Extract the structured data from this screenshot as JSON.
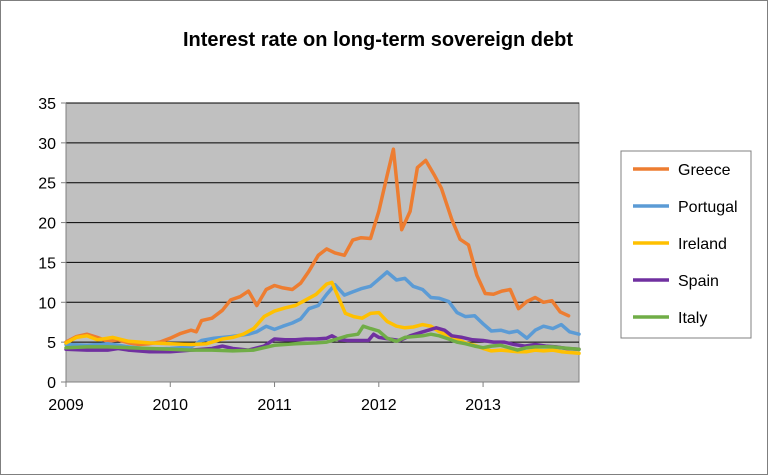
{
  "chart_data": {
    "type": "line",
    "title": "Interest rate on long-term sovereign debt",
    "xlabel": "",
    "ylabel": "",
    "xlim": [
      2009,
      2013.92
    ],
    "ylim": [
      0,
      35
    ],
    "yticks": [
      0,
      5,
      10,
      15,
      20,
      25,
      30,
      35
    ],
    "xticks": [
      2009,
      2010,
      2011,
      2012,
      2013
    ],
    "ytick_labels": [
      "0",
      "5",
      "10",
      "15",
      "20",
      "25",
      "30",
      "35"
    ],
    "xtick_labels": [
      "2009",
      "2010",
      "2011",
      "2012",
      "2013"
    ],
    "grid": "horizontal",
    "legend_position": "right",
    "plot_background": "#c0c0c0",
    "series": [
      {
        "name": "Greece",
        "color": "#ed7d31",
        "points": [
          [
            2009.0,
            5.0
          ],
          [
            2009.1,
            5.7
          ],
          [
            2009.2,
            6.0
          ],
          [
            2009.3,
            5.6
          ],
          [
            2009.4,
            5.1
          ],
          [
            2009.5,
            5.3
          ],
          [
            2009.6,
            4.9
          ],
          [
            2009.7,
            4.7
          ],
          [
            2009.8,
            4.8
          ],
          [
            2009.9,
            5.0
          ],
          [
            2010.0,
            5.5
          ],
          [
            2010.1,
            6.1
          ],
          [
            2010.2,
            6.5
          ],
          [
            2010.25,
            6.3
          ],
          [
            2010.3,
            7.7
          ],
          [
            2010.4,
            8.0
          ],
          [
            2010.5,
            9.0
          ],
          [
            2010.58,
            10.3
          ],
          [
            2010.67,
            10.7
          ],
          [
            2010.75,
            11.4
          ],
          [
            2010.83,
            9.6
          ],
          [
            2010.92,
            11.6
          ],
          [
            2011.0,
            12.1
          ],
          [
            2011.08,
            11.8
          ],
          [
            2011.17,
            11.6
          ],
          [
            2011.25,
            12.4
          ],
          [
            2011.33,
            13.9
          ],
          [
            2011.42,
            15.9
          ],
          [
            2011.5,
            16.7
          ],
          [
            2011.58,
            16.2
          ],
          [
            2011.67,
            15.9
          ],
          [
            2011.75,
            17.8
          ],
          [
            2011.83,
            18.1
          ],
          [
            2011.92,
            18.0
          ],
          [
            2012.0,
            21.4
          ],
          [
            2012.08,
            25.9
          ],
          [
            2012.14,
            29.2
          ],
          [
            2012.22,
            19.1
          ],
          [
            2012.3,
            21.4
          ],
          [
            2012.37,
            26.9
          ],
          [
            2012.45,
            27.8
          ],
          [
            2012.53,
            26.0
          ],
          [
            2012.6,
            24.3
          ],
          [
            2012.7,
            20.4
          ],
          [
            2012.78,
            17.9
          ],
          [
            2012.86,
            17.2
          ],
          [
            2012.94,
            13.4
          ],
          [
            2013.02,
            11.1
          ],
          [
            2013.1,
            11.0
          ],
          [
            2013.18,
            11.4
          ],
          [
            2013.26,
            11.6
          ],
          [
            2013.34,
            9.2
          ],
          [
            2013.42,
            10.1
          ],
          [
            2013.5,
            10.6
          ],
          [
            2013.58,
            10.0
          ],
          [
            2013.66,
            10.2
          ],
          [
            2013.74,
            8.8
          ],
          [
            2013.82,
            8.3
          ]
        ]
      },
      {
        "name": "Portugal",
        "color": "#5b9bd5",
        "points": [
          [
            2009.0,
            4.7
          ],
          [
            2009.2,
            4.6
          ],
          [
            2009.4,
            4.8
          ],
          [
            2009.6,
            4.4
          ],
          [
            2009.8,
            4.1
          ],
          [
            2010.0,
            4.2
          ],
          [
            2010.2,
            4.4
          ],
          [
            2010.3,
            5.2
          ],
          [
            2010.42,
            5.5
          ],
          [
            2010.58,
            5.7
          ],
          [
            2010.75,
            6.0
          ],
          [
            2010.83,
            6.3
          ],
          [
            2010.92,
            7.0
          ],
          [
            2011.0,
            6.6
          ],
          [
            2011.08,
            7.0
          ],
          [
            2011.17,
            7.4
          ],
          [
            2011.25,
            7.9
          ],
          [
            2011.33,
            9.2
          ],
          [
            2011.42,
            9.6
          ],
          [
            2011.5,
            11.0
          ],
          [
            2011.58,
            12.2
          ],
          [
            2011.67,
            10.9
          ],
          [
            2011.75,
            11.3
          ],
          [
            2011.83,
            11.7
          ],
          [
            2011.92,
            12.0
          ],
          [
            2012.0,
            12.9
          ],
          [
            2012.08,
            13.8
          ],
          [
            2012.17,
            12.8
          ],
          [
            2012.25,
            13.0
          ],
          [
            2012.33,
            12.0
          ],
          [
            2012.42,
            11.6
          ],
          [
            2012.5,
            10.6
          ],
          [
            2012.58,
            10.5
          ],
          [
            2012.67,
            10.1
          ],
          [
            2012.75,
            8.7
          ],
          [
            2012.83,
            8.2
          ],
          [
            2012.92,
            8.3
          ],
          [
            2013.0,
            7.3
          ],
          [
            2013.08,
            6.4
          ],
          [
            2013.17,
            6.5
          ],
          [
            2013.25,
            6.2
          ],
          [
            2013.33,
            6.4
          ],
          [
            2013.42,
            5.5
          ],
          [
            2013.5,
            6.5
          ],
          [
            2013.58,
            7.0
          ],
          [
            2013.67,
            6.7
          ],
          [
            2013.75,
            7.2
          ],
          [
            2013.83,
            6.3
          ],
          [
            2013.92,
            6.0
          ]
        ]
      },
      {
        "name": "Ireland",
        "color": "#ffc000",
        "points": [
          [
            2009.0,
            4.9
          ],
          [
            2009.1,
            5.6
          ],
          [
            2009.2,
            5.8
          ],
          [
            2009.3,
            5.3
          ],
          [
            2009.45,
            5.6
          ],
          [
            2009.6,
            5.1
          ],
          [
            2009.8,
            4.9
          ],
          [
            2010.0,
            4.8
          ],
          [
            2010.2,
            4.7
          ],
          [
            2010.35,
            4.8
          ],
          [
            2010.5,
            5.4
          ],
          [
            2010.6,
            5.6
          ],
          [
            2010.7,
            6.0
          ],
          [
            2010.8,
            6.7
          ],
          [
            2010.9,
            8.2
          ],
          [
            2011.0,
            8.9
          ],
          [
            2011.1,
            9.3
          ],
          [
            2011.2,
            9.6
          ],
          [
            2011.3,
            10.3
          ],
          [
            2011.4,
            11.0
          ],
          [
            2011.5,
            12.3
          ],
          [
            2011.55,
            12.5
          ],
          [
            2011.6,
            11.0
          ],
          [
            2011.68,
            8.6
          ],
          [
            2011.76,
            8.2
          ],
          [
            2011.84,
            8.0
          ],
          [
            2011.92,
            8.6
          ],
          [
            2012.0,
            8.7
          ],
          [
            2012.08,
            7.6
          ],
          [
            2012.17,
            7.0
          ],
          [
            2012.25,
            6.8
          ],
          [
            2012.33,
            6.9
          ],
          [
            2012.42,
            7.2
          ],
          [
            2012.5,
            7.0
          ],
          [
            2012.58,
            6.3
          ],
          [
            2012.67,
            5.8
          ],
          [
            2012.75,
            5.4
          ],
          [
            2012.83,
            4.9
          ],
          [
            2012.92,
            4.6
          ],
          [
            2013.0,
            4.2
          ],
          [
            2013.08,
            3.9
          ],
          [
            2013.17,
            4.0
          ],
          [
            2013.25,
            3.9
          ],
          [
            2013.33,
            3.8
          ],
          [
            2013.42,
            3.8
          ],
          [
            2013.5,
            4.0
          ],
          [
            2013.58,
            3.9
          ],
          [
            2013.67,
            4.0
          ],
          [
            2013.75,
            3.8
          ],
          [
            2013.83,
            3.7
          ],
          [
            2013.92,
            3.6
          ]
        ]
      },
      {
        "name": "Spain",
        "color": "#7030a0",
        "points": [
          [
            2009.0,
            4.1
          ],
          [
            2009.2,
            4.0
          ],
          [
            2009.4,
            4.0
          ],
          [
            2009.5,
            4.2
          ],
          [
            2009.6,
            4.0
          ],
          [
            2009.8,
            3.8
          ],
          [
            2010.0,
            3.8
          ],
          [
            2010.2,
            4.0
          ],
          [
            2010.4,
            4.2
          ],
          [
            2010.5,
            4.5
          ],
          [
            2010.6,
            4.2
          ],
          [
            2010.75,
            4.0
          ],
          [
            2010.9,
            4.5
          ],
          [
            2011.0,
            5.4
          ],
          [
            2011.1,
            5.3
          ],
          [
            2011.2,
            5.3
          ],
          [
            2011.3,
            5.4
          ],
          [
            2011.4,
            5.4
          ],
          [
            2011.5,
            5.5
          ],
          [
            2011.55,
            5.8
          ],
          [
            2011.62,
            5.3
          ],
          [
            2011.7,
            5.2
          ],
          [
            2011.8,
            5.2
          ],
          [
            2011.9,
            5.2
          ],
          [
            2011.95,
            6.0
          ],
          [
            2012.0,
            5.6
          ],
          [
            2012.1,
            5.4
          ],
          [
            2012.2,
            5.2
          ],
          [
            2012.3,
            5.8
          ],
          [
            2012.4,
            6.2
          ],
          [
            2012.5,
            6.6
          ],
          [
            2012.55,
            6.8
          ],
          [
            2012.63,
            6.5
          ],
          [
            2012.7,
            5.8
          ],
          [
            2012.8,
            5.6
          ],
          [
            2012.9,
            5.3
          ],
          [
            2013.0,
            5.2
          ],
          [
            2013.1,
            5.0
          ],
          [
            2013.2,
            5.0
          ],
          [
            2013.3,
            4.7
          ],
          [
            2013.4,
            4.5
          ],
          [
            2013.5,
            4.7
          ],
          [
            2013.6,
            4.5
          ],
          [
            2013.7,
            4.4
          ],
          [
            2013.8,
            4.2
          ],
          [
            2013.92,
            4.1
          ]
        ]
      },
      {
        "name": "Italy",
        "color": "#70ad47",
        "points": [
          [
            2009.0,
            4.3
          ],
          [
            2009.2,
            4.4
          ],
          [
            2009.4,
            4.4
          ],
          [
            2009.6,
            4.3
          ],
          [
            2009.8,
            4.2
          ],
          [
            2010.0,
            4.1
          ],
          [
            2010.2,
            4.0
          ],
          [
            2010.4,
            4.0
          ],
          [
            2010.6,
            3.9
          ],
          [
            2010.8,
            4.0
          ],
          [
            2010.9,
            4.3
          ],
          [
            2011.0,
            4.6
          ],
          [
            2011.2,
            4.8
          ],
          [
            2011.4,
            4.9
          ],
          [
            2011.5,
            5.0
          ],
          [
            2011.6,
            5.4
          ],
          [
            2011.7,
            5.8
          ],
          [
            2011.8,
            6.0
          ],
          [
            2011.85,
            7.0
          ],
          [
            2011.92,
            6.7
          ],
          [
            2012.0,
            6.4
          ],
          [
            2012.08,
            5.5
          ],
          [
            2012.17,
            5.1
          ],
          [
            2012.25,
            5.6
          ],
          [
            2012.33,
            5.7
          ],
          [
            2012.42,
            5.8
          ],
          [
            2012.5,
            6.0
          ],
          [
            2012.58,
            5.8
          ],
          [
            2012.67,
            5.4
          ],
          [
            2012.75,
            5.0
          ],
          [
            2012.83,
            4.8
          ],
          [
            2012.92,
            4.5
          ],
          [
            2013.0,
            4.3
          ],
          [
            2013.08,
            4.5
          ],
          [
            2013.17,
            4.6
          ],
          [
            2013.25,
            4.3
          ],
          [
            2013.33,
            4.0
          ],
          [
            2013.42,
            4.3
          ],
          [
            2013.5,
            4.4
          ],
          [
            2013.58,
            4.4
          ],
          [
            2013.67,
            4.4
          ],
          [
            2013.75,
            4.3
          ],
          [
            2013.83,
            4.2
          ],
          [
            2013.92,
            4.1
          ]
        ]
      }
    ]
  }
}
